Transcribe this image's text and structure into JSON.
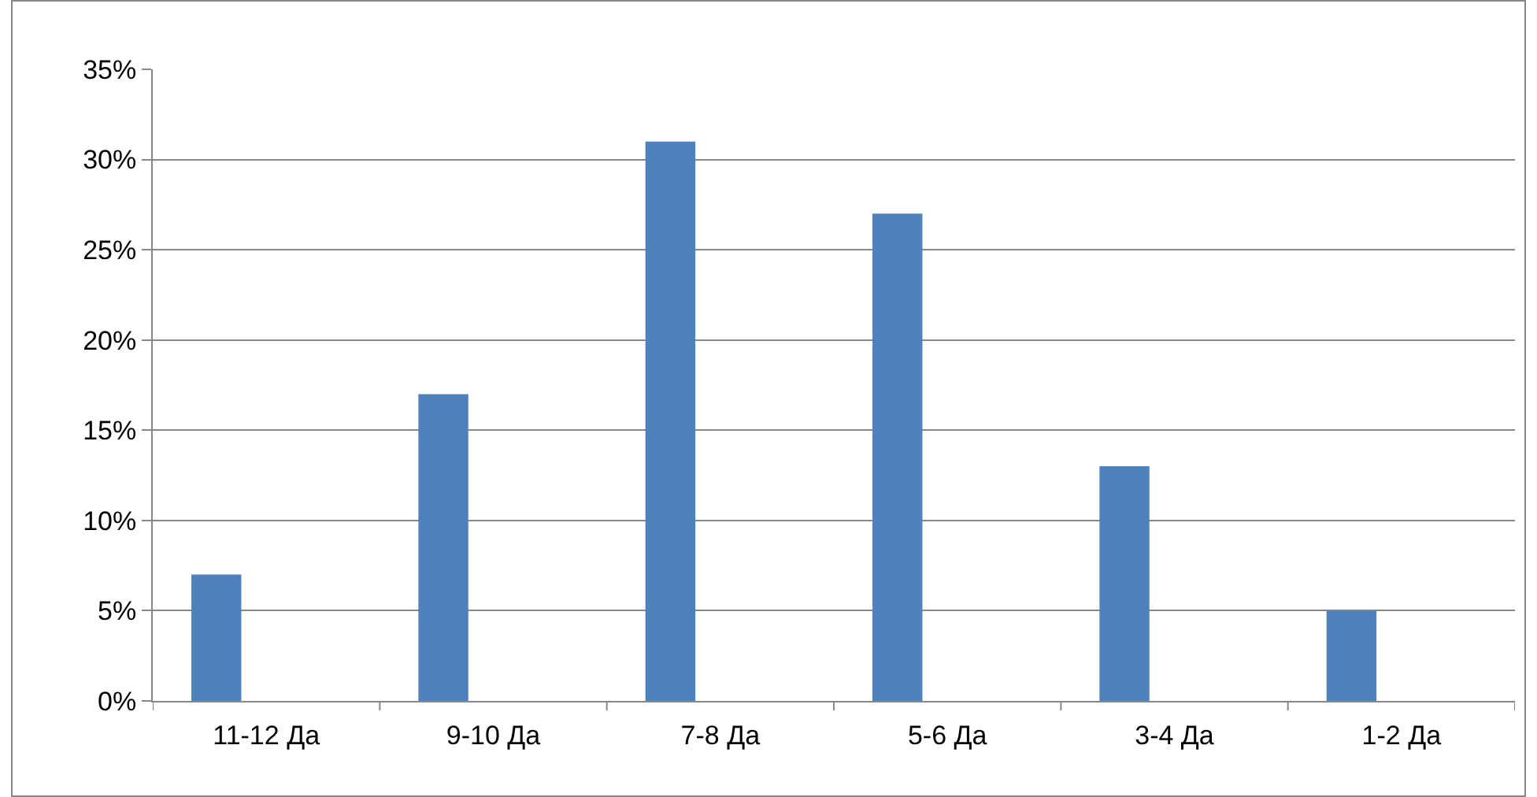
{
  "chart_data": {
    "type": "bar",
    "categories": [
      "11-12 Да",
      "9-10 Да",
      "7-8 Да",
      "5-6 Да",
      "3-4 Да",
      "1-2 Да"
    ],
    "values": [
      7,
      17,
      31,
      27,
      13,
      5
    ],
    "color": "#4f81bd",
    "ylim": [
      0,
      35
    ],
    "yticks": [
      {
        "value": 0,
        "label": "0%"
      },
      {
        "value": 5,
        "label": "5%"
      },
      {
        "value": 10,
        "label": "10%"
      },
      {
        "value": 15,
        "label": "15%"
      },
      {
        "value": 20,
        "label": "20%"
      },
      {
        "value": 25,
        "label": "25%"
      },
      {
        "value": 30,
        "label": "30%"
      },
      {
        "value": 35,
        "label": "35%"
      }
    ],
    "grid": "y"
  }
}
